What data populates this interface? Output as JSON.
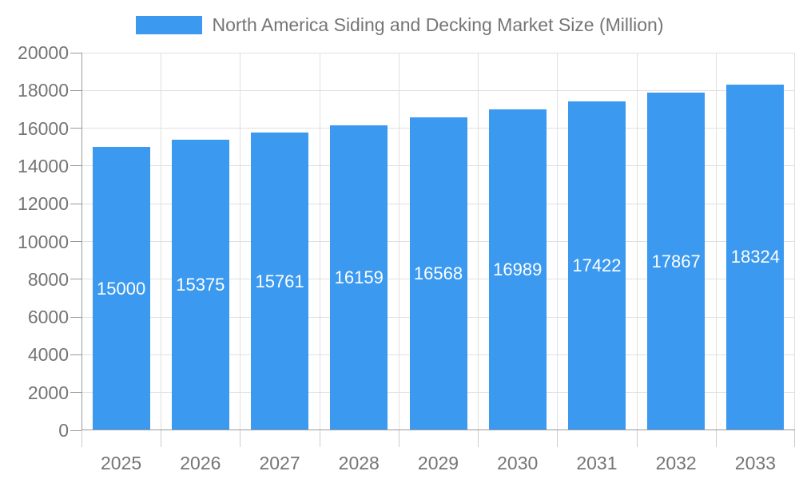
{
  "legend": {
    "label": "North America Siding and Decking Market Size (Million)",
    "swatch_color": "#3B99F0"
  },
  "chart_data": {
    "type": "bar",
    "title": "North America Siding and Decking Market Size (Million)",
    "categories": [
      "2025",
      "2026",
      "2027",
      "2028",
      "2029",
      "2030",
      "2031",
      "2032",
      "2033"
    ],
    "values": [
      15000,
      15375,
      15761,
      16159,
      16568,
      16989,
      17422,
      17867,
      18324
    ],
    "xlabel": "",
    "ylabel": "",
    "ylim": [
      0,
      20000
    ],
    "yticks": [
      0,
      2000,
      4000,
      6000,
      8000,
      10000,
      12000,
      14000,
      16000,
      18000,
      20000
    ],
    "grid": true,
    "legend_position": "top",
    "bar_labels_shown": true,
    "colors": {
      "bar": "#3B99F0",
      "bar_label": "#ffffff",
      "axis": "#999999",
      "grid": "#e0e0e0",
      "x_tick": "#cccccc",
      "tick_label": "#757575"
    }
  }
}
